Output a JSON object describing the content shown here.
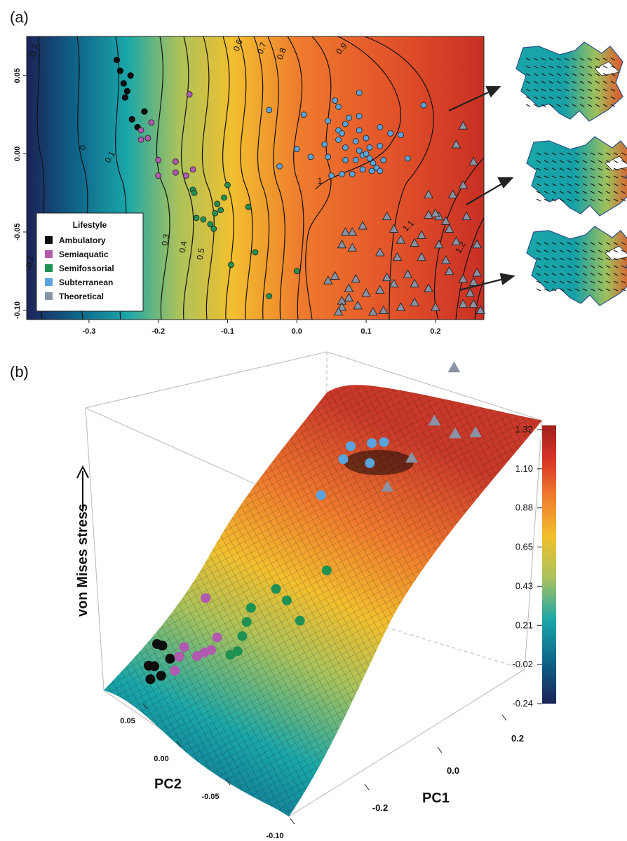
{
  "colors": {
    "ambulatory": "#0d0d0d",
    "semiaquatic": "#b05ab0",
    "semifossorial": "#1f9152",
    "subterranean": "#5aa3dc",
    "theoretical": "#8a92a5",
    "stress_scale": [
      "#1c2357",
      "#0e5f86",
      "#1aa6a9",
      "#a9c25c",
      "#f2bf2f",
      "#ef7a2e",
      "#d53426",
      "#a11f1e"
    ]
  },
  "chart_data": [
    {
      "panel": "(a)",
      "type": "scatter",
      "xlim": [
        -0.39,
        0.27
      ],
      "ylim": [
        -0.106,
        0.075
      ],
      "x_ticks": [
        "-0.3",
        "-0.2",
        "-0.1",
        "0.0",
        "0.1",
        "0.2"
      ],
      "y_ticks": [
        "0.05",
        "0.00",
        "-0.05",
        "-0.10"
      ],
      "contour_labels": [
        "-0.2",
        "0",
        "0.1",
        "0.3",
        "0.4",
        "0.5",
        "0.6",
        "0.7",
        "0.8",
        "0.9",
        "1",
        "1.1",
        "1.2",
        "-0.2"
      ],
      "legend": {
        "title": "Lifestyle",
        "entries": [
          "Ambulatory",
          "Semiaquatic",
          "Semifossorial",
          "Subterranean",
          "Theoretical"
        ],
        "placement": "bottom-left"
      },
      "series": [
        {
          "name": "Ambulatory",
          "marker": "circle",
          "points": [
            [
              -0.26,
              0.06
            ],
            [
              -0.255,
              0.053
            ],
            [
              -0.24,
              0.05
            ],
            [
              -0.25,
              0.045
            ],
            [
              -0.245,
              0.04
            ],
            [
              -0.248,
              0.036
            ],
            [
              -0.22,
              0.027
            ],
            [
              -0.238,
              0.022
            ],
            [
              -0.23,
              0.017
            ]
          ]
        },
        {
          "name": "Semiaquatic",
          "marker": "circle",
          "points": [
            [
              -0.155,
              0.038
            ],
            [
              -0.21,
              0.02
            ],
            [
              -0.225,
              0.015
            ],
            [
              -0.215,
              0.01
            ],
            [
              -0.225,
              0.009
            ],
            [
              -0.2,
              -0.004
            ],
            [
              -0.175,
              -0.005
            ],
            [
              -0.2,
              -0.014
            ],
            [
              -0.175,
              -0.012
            ],
            [
              -0.16,
              -0.014
            ],
            [
              -0.15,
              -0.01
            ]
          ]
        },
        {
          "name": "Semifossorial",
          "marker": "circle",
          "points": [
            [
              -0.15,
              -0.023
            ],
            [
              -0.148,
              -0.025
            ],
            [
              -0.1,
              -0.02
            ],
            [
              -0.105,
              -0.028
            ],
            [
              -0.115,
              -0.032
            ],
            [
              -0.11,
              -0.036
            ],
            [
              -0.07,
              -0.034
            ],
            [
              -0.118,
              -0.038
            ],
            [
              -0.135,
              -0.042
            ],
            [
              -0.145,
              -0.041
            ],
            [
              -0.125,
              -0.045
            ],
            [
              -0.12,
              -0.048
            ],
            [
              -0.06,
              -0.063
            ],
            [
              -0.095,
              -0.071
            ],
            [
              0.0,
              -0.075
            ],
            [
              -0.04,
              -0.091
            ]
          ]
        },
        {
          "name": "Subterranean",
          "marker": "circle",
          "points": [
            [
              0.09,
              0.039
            ],
            [
              0.055,
              0.034
            ],
            [
              0.06,
              0.03
            ],
            [
              0.183,
              0.031
            ],
            [
              -0.04,
              0.028
            ],
            [
              0.01,
              0.025
            ],
            [
              0.045,
              0.021
            ],
            [
              0.075,
              0.023
            ],
            [
              0.09,
              0.024
            ],
            [
              0.06,
              0.015
            ],
            [
              0.065,
              0.013
            ],
            [
              0.15,
              0.012
            ],
            [
              0.135,
              0.013
            ],
            [
              0.1,
              0.01
            ],
            [
              0.085,
              0.008
            ],
            [
              0.06,
              0.009
            ],
            [
              0.04,
              0.006
            ],
            [
              0.07,
              0.004
            ],
            [
              0.09,
              0.002
            ],
            [
              0.105,
              0.004
            ],
            [
              0.12,
              0.005
            ],
            [
              0.0,
              0.003
            ],
            [
              0.02,
              -0.002
            ],
            [
              0.045,
              -0.002
            ],
            [
              0.07,
              -0.004
            ],
            [
              0.085,
              -0.004
            ],
            [
              0.095,
              -0.001
            ],
            [
              0.1,
              0.0
            ],
            [
              0.105,
              -0.003
            ],
            [
              0.11,
              -0.006
            ],
            [
              0.115,
              -0.009
            ],
            [
              0.12,
              -0.011
            ],
            [
              0.108,
              -0.011
            ],
            [
              0.095,
              -0.01
            ],
            [
              0.08,
              -0.013
            ],
            [
              0.065,
              -0.013
            ],
            [
              0.05,
              -0.014
            ],
            [
              0.125,
              -0.004
            ],
            [
              0.16,
              -0.003
            ],
            [
              -0.025,
              -0.008
            ],
            [
              0.09,
              0.015
            ],
            [
              0.07,
              0.019
            ],
            [
              0.12,
              0.017
            ]
          ]
        },
        {
          "name": "Theoretical",
          "marker": "triangle",
          "points": [
            [
              0.24,
              0.018
            ],
            [
              0.23,
              0.006
            ],
            [
              0.255,
              -0.005
            ],
            [
              0.19,
              -0.026
            ],
            [
              0.24,
              -0.02
            ],
            [
              0.225,
              -0.026
            ],
            [
              0.215,
              -0.043
            ],
            [
              0.205,
              -0.04
            ],
            [
              0.2,
              -0.038
            ],
            [
              0.19,
              -0.039
            ],
            [
              0.245,
              -0.04
            ],
            [
              0.22,
              -0.048
            ],
            [
              0.23,
              -0.056
            ],
            [
              0.26,
              -0.058
            ],
            [
              0.18,
              -0.052
            ],
            [
              0.17,
              -0.057
            ],
            [
              0.205,
              -0.058
            ],
            [
              0.13,
              -0.04
            ],
            [
              0.14,
              -0.048
            ],
            [
              0.15,
              -0.055
            ],
            [
              0.095,
              -0.046
            ],
            [
              0.08,
              -0.05
            ],
            [
              0.07,
              -0.05
            ],
            [
              0.065,
              -0.058
            ],
            [
              0.08,
              -0.06
            ],
            [
              0.12,
              -0.063
            ],
            [
              0.145,
              -0.066
            ],
            [
              0.18,
              -0.066
            ],
            [
              0.215,
              -0.068
            ],
            [
              0.22,
              -0.075
            ],
            [
              0.26,
              -0.076
            ],
            [
              0.255,
              -0.082
            ],
            [
              0.25,
              -0.089
            ],
            [
              0.24,
              -0.08
            ],
            [
              0.24,
              -0.096
            ],
            [
              0.255,
              -0.096
            ],
            [
              0.265,
              -0.1
            ],
            [
              0.2,
              -0.098
            ],
            [
              0.19,
              -0.086
            ],
            [
              0.17,
              -0.083
            ],
            [
              0.16,
              -0.077
            ],
            [
              0.13,
              -0.079
            ],
            [
              0.12,
              -0.087
            ],
            [
              0.1,
              -0.089
            ],
            [
              0.085,
              -0.08
            ],
            [
              0.075,
              -0.086
            ],
            [
              0.065,
              -0.094
            ],
            [
              0.075,
              -0.092
            ],
            [
              0.088,
              -0.097
            ],
            [
              0.11,
              -0.101
            ],
            [
              0.125,
              -0.1
            ],
            [
              0.15,
              -0.098
            ],
            [
              0.17,
              -0.095
            ],
            [
              0.065,
              -0.098
            ],
            [
              0.06,
              -0.101
            ],
            [
              0.14,
              -0.083
            ],
            [
              0.055,
              -0.078
            ],
            [
              0.045,
              -0.081
            ]
          ]
        }
      ]
    },
    {
      "panel": "(b)",
      "type": "surface",
      "axes": {
        "x_title": "PC1",
        "y_title": "PC2",
        "z_title": "von Mises stress",
        "pc1_ticks": [
          "-0.2",
          "0.0",
          "0.2"
        ],
        "pc2_ticks": [
          "0.05",
          "0.00",
          "-0.05",
          "-0.10"
        ]
      },
      "colorbar": {
        "range": [
          -0.24,
          1.32
        ],
        "ticks": [
          "1.32",
          "1.10",
          "0.88",
          "0.65",
          "0.43",
          "0.21",
          "-0.02",
          "-0.24"
        ]
      },
      "series": [
        {
          "name": "Ambulatory",
          "points": [
            [
              -0.24,
              0.045,
              0.18
            ],
            [
              -0.23,
              0.04,
              0.16
            ],
            [
              -0.26,
              0.03,
              0.15
            ],
            [
              -0.25,
              0.025,
              0.14
            ],
            [
              -0.22,
              0.02,
              0.13
            ],
            [
              -0.26,
              0.015,
              0.12
            ],
            [
              -0.24,
              0.01,
              0.11
            ]
          ]
        },
        {
          "name": "Semiaquatic",
          "points": [
            [
              -0.16,
              0.04,
              0.35
            ],
            [
              -0.2,
              0.015,
              0.2
            ],
            [
              -0.21,
              0.01,
              0.18
            ],
            [
              -0.22,
              0.0,
              0.15
            ],
            [
              -0.18,
              -0.005,
              0.17
            ],
            [
              -0.17,
              -0.01,
              0.2
            ],
            [
              -0.16,
              -0.015,
              0.22
            ],
            [
              -0.15,
              -0.01,
              0.27
            ]
          ]
        },
        {
          "name": "Semifossorial",
          "points": [
            [
              -0.1,
              -0.02,
              0.43
            ],
            [
              -0.11,
              -0.03,
              0.4
            ],
            [
              -0.12,
              -0.04,
              0.37
            ],
            [
              -0.13,
              -0.05,
              0.33
            ],
            [
              -0.07,
              -0.035,
              0.6
            ],
            [
              -0.06,
              -0.06,
              0.62
            ],
            [
              -0.04,
              -0.09,
              0.55
            ],
            [
              0.0,
              -0.075,
              0.78
            ],
            [
              -0.14,
              -0.045,
              0.3
            ]
          ]
        },
        {
          "name": "Subterranean",
          "points": [
            [
              0.0,
              0.0,
              1.0
            ],
            [
              0.05,
              0.02,
              1.02
            ],
            [
              0.1,
              0.01,
              1.05
            ],
            [
              0.12,
              0.0,
              1.05
            ],
            [
              0.09,
              -0.01,
              1.03
            ],
            [
              0.07,
              0.03,
              1.0
            ]
          ]
        },
        {
          "name": "Theoretical",
          "points": [
            [
              0.25,
              0.01,
              1.2
            ],
            [
              0.2,
              -0.03,
              1.15
            ],
            [
              0.15,
              -0.05,
              1.12
            ],
            [
              0.22,
              -0.07,
              1.22
            ],
            [
              0.1,
              -0.06,
              1.1
            ],
            [
              0.25,
              -0.09,
              1.25
            ]
          ]
        }
      ]
    }
  ]
}
